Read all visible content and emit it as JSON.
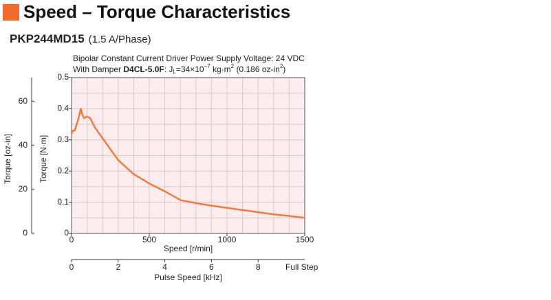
{
  "chart_data": {
    "type": "line",
    "title": "Speed – Torque Characteristics",
    "model": "PKP244MD15",
    "model_note": "(1.5 A/Phase)",
    "note_line1": "Bipolar Constant Current Driver  Power Supply Voltage: 24 VDC",
    "note_line2": {
      "prefix": "With Damper ",
      "damper": "D4CL-5.0F",
      "colon": ": J",
      "sub": "L",
      "inertia": "=34×10",
      "exp": "−7",
      "unit": " kg·m",
      "unit_exp": "2",
      "paren": " (0.186 oz-in",
      "paren_exp": "2",
      "close": ")"
    },
    "x_label": "Speed [r/min]",
    "y_label": "Torque [N·m]",
    "y2_label": "Torque [oz-in]",
    "x2_label": "Pulse Speed [kHz]",
    "x2_note": "Full Step",
    "x": [
      0,
      10,
      20,
      40,
      60,
      70,
      80,
      100,
      120,
      150,
      200,
      250,
      300,
      400,
      500,
      600,
      700,
      800,
      900,
      1000,
      1100,
      1200,
      1300,
      1400,
      1500
    ],
    "series": [
      {
        "name": "Torque",
        "color": "#f47a3c",
        "values": [
          0.32,
          0.33,
          0.33,
          0.36,
          0.4,
          0.38,
          0.37,
          0.375,
          0.37,
          0.34,
          0.305,
          0.27,
          0.235,
          0.19,
          0.16,
          0.135,
          0.107,
          0.097,
          0.089,
          0.082,
          0.075,
          0.068,
          0.061,
          0.056,
          0.05
        ]
      }
    ],
    "xlim": [
      0,
      1500
    ],
    "xticks": [
      0,
      500,
      1000,
      1500
    ],
    "ylim": [
      0,
      0.5
    ],
    "yticks": [
      0,
      0.1,
      0.2,
      0.3,
      0.4,
      0.5
    ],
    "y2lim": [
      0,
      70.8
    ],
    "y2ticks": [
      0,
      20,
      40,
      60
    ],
    "x2lim": [
      0,
      10
    ],
    "x2ticks": [
      0,
      2,
      4,
      6,
      8
    ],
    "x_grid_lines": [
      100,
      200,
      300,
      400,
      500,
      600,
      700,
      800,
      900,
      1000,
      1100,
      1200,
      1300,
      1400
    ],
    "y_grid_lines": [
      0.05,
      0.1,
      0.15,
      0.2,
      0.25,
      0.3,
      0.35,
      0.4,
      0.45
    ],
    "grid": true,
    "plot_background": "#fbecee",
    "grid_color": "#e0c4c8",
    "accent_color": "#f26a2a"
  }
}
